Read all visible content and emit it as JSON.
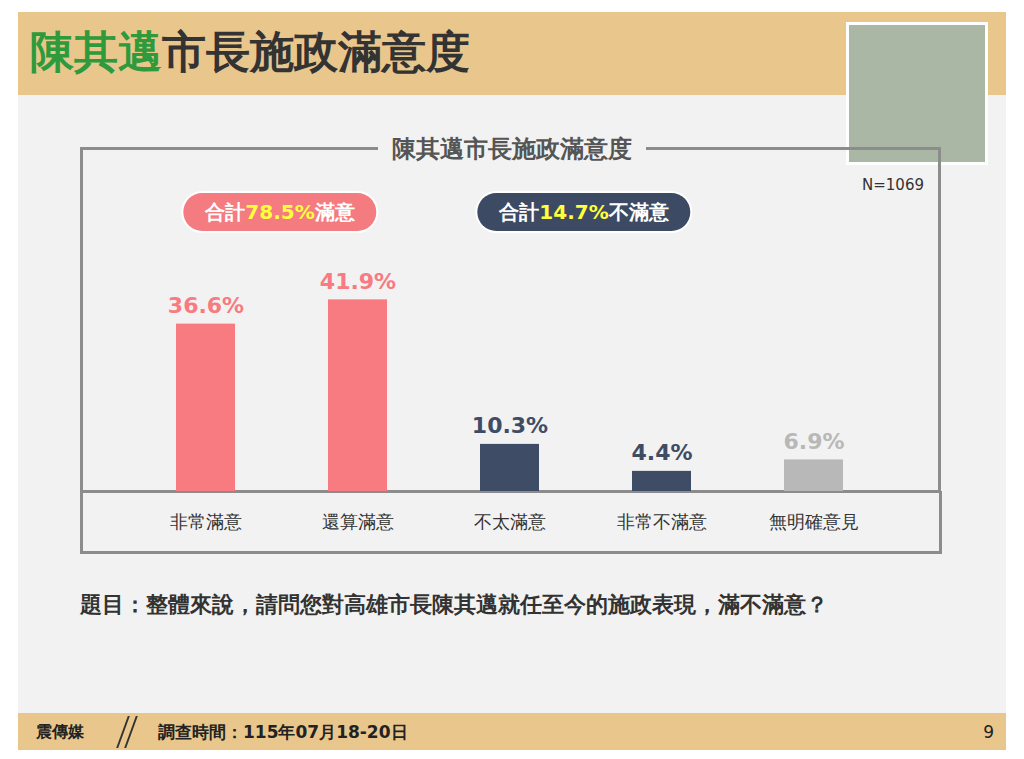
{
  "header": {
    "title_highlight": "陳其邁",
    "title_rest": "市長施政滿意度",
    "title_highlight_color": "#2e9a3c"
  },
  "chart_data": {
    "type": "bar",
    "title": "陳其邁市長施政滿意度",
    "note": "N=1069",
    "categories": [
      "非常滿意",
      "還算滿意",
      "不太滿意",
      "非常不滿意",
      "無明確意見"
    ],
    "values": [
      36.6,
      41.9,
      10.3,
      4.4,
      6.9
    ],
    "value_labels": [
      "36.6%",
      "41.9%",
      "10.3%",
      "4.4%",
      "6.9%"
    ],
    "colors": [
      "#f77b80",
      "#f77b80",
      "#3f4c65",
      "#3f4c65",
      "#b8b8b8"
    ],
    "ylim": [
      0,
      75
    ],
    "data_labels": true,
    "tick_labels": "x",
    "annotations": [
      {
        "prefix": "合計",
        "highlight": "78.5%",
        "suffix": "滿意",
        "color": "#f47b80"
      },
      {
        "prefix": "合計",
        "highlight": "14.7%",
        "suffix": "不滿意",
        "color": "#3d4a63"
      }
    ]
  },
  "question": "題目：整體來說，請問您對高雄市長陳其邁就任至今的施政表現，滿不滿意？",
  "footer": {
    "source": "震傳媒",
    "survey_date": "調查時間：115年07月18-20日",
    "page": "9"
  }
}
